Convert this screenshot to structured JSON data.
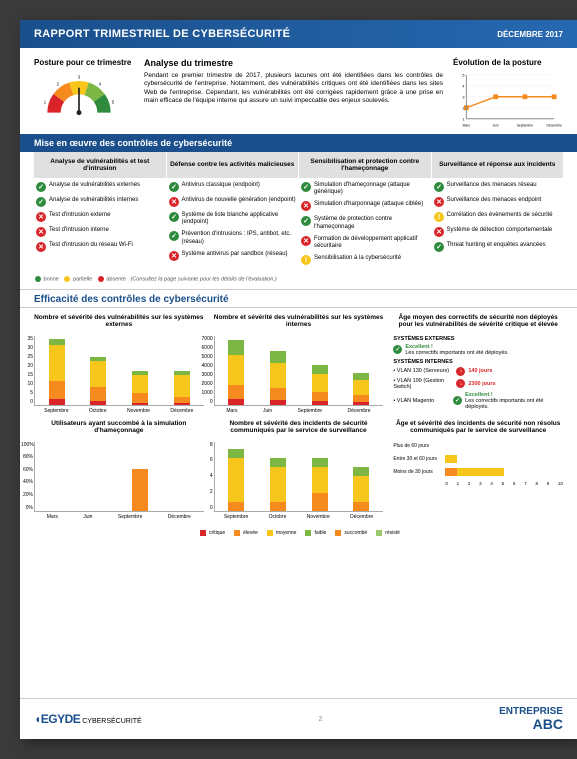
{
  "header": {
    "title": "RAPPORT TRIMESTRIEL DE CYBERSÉCURITÉ",
    "date": "DÉCEMBRE 2017"
  },
  "posture": {
    "title": "Posture pour ce trimestre",
    "gauge_colors": [
      "#d9252a",
      "#f58a1f",
      "#f7c61c",
      "#7bb742",
      "#2e8b3d"
    ],
    "needle_color": "#222",
    "gauge_scale": [
      "1",
      "2",
      "3",
      "4",
      "5"
    ]
  },
  "analysis": {
    "title": "Analyse du trimestre",
    "text": "Pendant ce premier trimestre de 2017, plusieurs lacunes ont été identifiées dans les contrôles de cybersécurité de l'entreprise. Notamment, des vulnérabilités critiques ont été identifiées dans les sites Web de l'entreprise. Cependant, les vulnérabilités ont été corrigées rapidement grâce à une prise en main efficace de l'équipe interne qui assure un suivi impeccable des enjeux soulevés."
  },
  "evolution": {
    "title": "Évolution de la posture",
    "y_max": 5,
    "line_color": "#f58a1f",
    "points": [
      {
        "x": "Mars",
        "y": 2
      },
      {
        "x": "Juin",
        "y": 3
      },
      {
        "x": "Septembre",
        "y": 3
      },
      {
        "x": "Décembre",
        "y": 3
      }
    ],
    "ylabels": [
      "1",
      "2",
      "3",
      "4",
      "5"
    ]
  },
  "controls_title": "Mise en œuvre des contrôles de cybersécurité",
  "controls": {
    "columns": [
      {
        "title": "Analyse de vulnérabilités et test d'intrusion",
        "items": [
          {
            "status": "ok",
            "label": "Analyse de vulnérabilités externes"
          },
          {
            "status": "ok",
            "label": "Analyse de vulnérabilités internes"
          },
          {
            "status": "bad",
            "label": "Test d'intrusion externe"
          },
          {
            "status": "bad",
            "label": "Test d'intrusion interne"
          },
          {
            "status": "bad",
            "label": "Test d'intrusion du réseau Wi-Fi"
          }
        ]
      },
      {
        "title": "Défense contre les activités malicieuses",
        "items": [
          {
            "status": "ok",
            "label": "Antivirus classique (endpoint)"
          },
          {
            "status": "bad",
            "label": "Antivirus de nouvelle génération (endpoint)"
          },
          {
            "status": "ok",
            "label": "Système de liste blanche applicative (endpoint)"
          },
          {
            "status": "ok",
            "label": "Prévention d'intrusions : IPS, antibot, etc. (réseau)"
          },
          {
            "status": "bad",
            "label": "Système antivirus par sandbox (réseau)"
          }
        ]
      },
      {
        "title": "Sensibilisation et protection contre l'hameçonnage",
        "items": [
          {
            "status": "ok",
            "label": "Simulation d'hameçonnage (attaque générique)"
          },
          {
            "status": "bad",
            "label": "Simulation d'harponnage (attaque ciblée)"
          },
          {
            "status": "ok",
            "label": "Système de protection contre l'hameçonnage"
          },
          {
            "status": "bad",
            "label": "Formation de développement applicatif sécuritaire"
          },
          {
            "status": "warn",
            "label": "Sensibilisation à la cybersécurité"
          }
        ]
      },
      {
        "title": "Surveillance et réponse aux incidents",
        "items": [
          {
            "status": "ok",
            "label": "Surveillance des menaces réseau"
          },
          {
            "status": "bad",
            "label": "Surveillance des menaces endpoint"
          },
          {
            "status": "warn",
            "label": "Corrélation des évènements de sécurité"
          },
          {
            "status": "bad",
            "label": "Système de détection comportementale"
          },
          {
            "status": "ok",
            "label": "Threat hunting et enquêtes avancées"
          }
        ]
      }
    ],
    "status_colors": {
      "ok": "#2e8b3d",
      "warn": "#f7c61c",
      "bad": "#d9252a"
    }
  },
  "legend_small": {
    "ok": "bonne",
    "warn": "partielle",
    "bad": "absente",
    "note": "(Consultez la page suivante pour les détails de l'évaluation.)"
  },
  "efficacy_title": "Efficacité des contrôles de cybersécurité",
  "charts": {
    "ext_vuln": {
      "title": "Nombre et sévérité des vulnérabilités sur les systèmes externes",
      "type": "stacked-bar",
      "ylim": [
        0,
        35
      ],
      "ytick": 5,
      "categories": [
        "Septembre",
        "Octobre",
        "Novembre",
        "Décembre"
      ],
      "series": [
        {
          "name": "critique",
          "color": "#d9252a",
          "data": [
            3,
            2,
            1,
            1
          ]
        },
        {
          "name": "élevée",
          "color": "#f58a1f",
          "data": [
            9,
            7,
            5,
            3
          ]
        },
        {
          "name": "moyenne",
          "color": "#f7c61c",
          "data": [
            18,
            13,
            9,
            11
          ]
        },
        {
          "name": "faible",
          "color": "#7bb742",
          "data": [
            3,
            2,
            2,
            2
          ]
        }
      ]
    },
    "int_vuln": {
      "title": "Nombre et sévérité des vulnérabilités sur les systèmes internes",
      "type": "stacked-bar",
      "ylim": [
        0,
        7000
      ],
      "ytick": 1000,
      "categories": [
        "Mars",
        "Juin",
        "Septembre",
        "Décembre"
      ],
      "series": [
        {
          "name": "critique",
          "color": "#d9252a",
          "data": [
            600,
            500,
            400,
            300
          ]
        },
        {
          "name": "élevée",
          "color": "#f58a1f",
          "data": [
            1400,
            1200,
            900,
            700
          ]
        },
        {
          "name": "moyenne",
          "color": "#f7c61c",
          "data": [
            3000,
            2500,
            1800,
            1500
          ]
        },
        {
          "name": "faible",
          "color": "#7bb742",
          "data": [
            1500,
            1200,
            900,
            700
          ]
        }
      ]
    },
    "patch_age": {
      "title": "Âge moyen des correctifs de sécurité non déployés pour les vulnérabilités de sévérité critique et élevée",
      "sections": [
        {
          "name": "SYSTÈMES EXTERNES",
          "rows": [
            {
              "label": "",
              "status": "ok",
              "color": "#2e8b3d",
              "text": "Excellent !",
              "detail": "Les correctifs importants ont été déployés."
            }
          ]
        },
        {
          "name": "SYSTÈMES INTERNES",
          "rows": [
            {
              "label": "• VLAN 130 (Serveurs)",
              "status": "bad",
              "color": "#d9252a",
              "text": "140 jours"
            },
            {
              "label": "• VLAN 199 (Gestion Switch)",
              "status": "bad",
              "color": "#d9252a",
              "text": "2300 jours"
            },
            {
              "label": "• VLAN Magento",
              "status": "ok",
              "color": "#2e8b3d",
              "text": "Excellent !",
              "detail": "Les correctifs importants ont été déployés."
            }
          ]
        }
      ]
    },
    "phishing": {
      "title": "Utilisateurs ayant succombé à la simulation d'hameçonnage",
      "type": "bar",
      "ylim": [
        0,
        100
      ],
      "ytick": 20,
      "suffix": "%",
      "categories": [
        "Mars",
        "Juin",
        "Septembre",
        "Décembre"
      ],
      "series": [
        {
          "name": "succombé",
          "color": "#f58a1f",
          "data": [
            0,
            0,
            60,
            0
          ]
        }
      ]
    },
    "incidents_comm": {
      "title": "Nombre et sévérité des incidents de sécurité communiqués par le service de surveillance",
      "type": "stacked-bar",
      "ylim": [
        0,
        8
      ],
      "ytick": 2,
      "categories": [
        "Septembre",
        "Octobre",
        "Novembre",
        "Décembre"
      ],
      "series": [
        {
          "name": "critique",
          "color": "#d9252a",
          "data": [
            0,
            0,
            0,
            0
          ]
        },
        {
          "name": "élevée",
          "color": "#f58a1f",
          "data": [
            1,
            1,
            2,
            1
          ]
        },
        {
          "name": "moyenne",
          "color": "#f7c61c",
          "data": [
            5,
            4,
            3,
            3
          ]
        },
        {
          "name": "faible",
          "color": "#7bb742",
          "data": [
            1,
            1,
            1,
            1
          ]
        }
      ]
    },
    "incidents_age": {
      "title": "Âge et sévérité des incidents de sécurité non résolus communiqués par le service de surveillance",
      "type": "hbar",
      "xlim": [
        0,
        10
      ],
      "xtick": 1,
      "rows": [
        {
          "label": "Plus de 60 jours",
          "segs": []
        },
        {
          "label": "Entre 30 et 60 jours",
          "segs": [
            {
              "color": "#f7c61c",
              "v": 1
            }
          ]
        },
        {
          "label": "Moins de 30 jours",
          "segs": [
            {
              "color": "#f58a1f",
              "v": 1
            },
            {
              "color": "#f7c61c",
              "v": 4
            }
          ]
        }
      ]
    }
  },
  "series_legend": [
    {
      "name": "critique",
      "color": "#d9252a"
    },
    {
      "name": "élevée",
      "color": "#f58a1f"
    },
    {
      "name": "moyenne",
      "color": "#f7c61c"
    },
    {
      "name": "faible",
      "color": "#7bb742"
    },
    {
      "name": "succombé",
      "color": "#f58a1f"
    },
    {
      "name": "résisté",
      "color": "#9cc96b"
    }
  ],
  "footer": {
    "left_logo": "EGYDE",
    "left_sub": "CYBERSÉCURITÉ",
    "page": "2",
    "right_top": "ENTREPRISE",
    "right_bottom": "ABC"
  }
}
